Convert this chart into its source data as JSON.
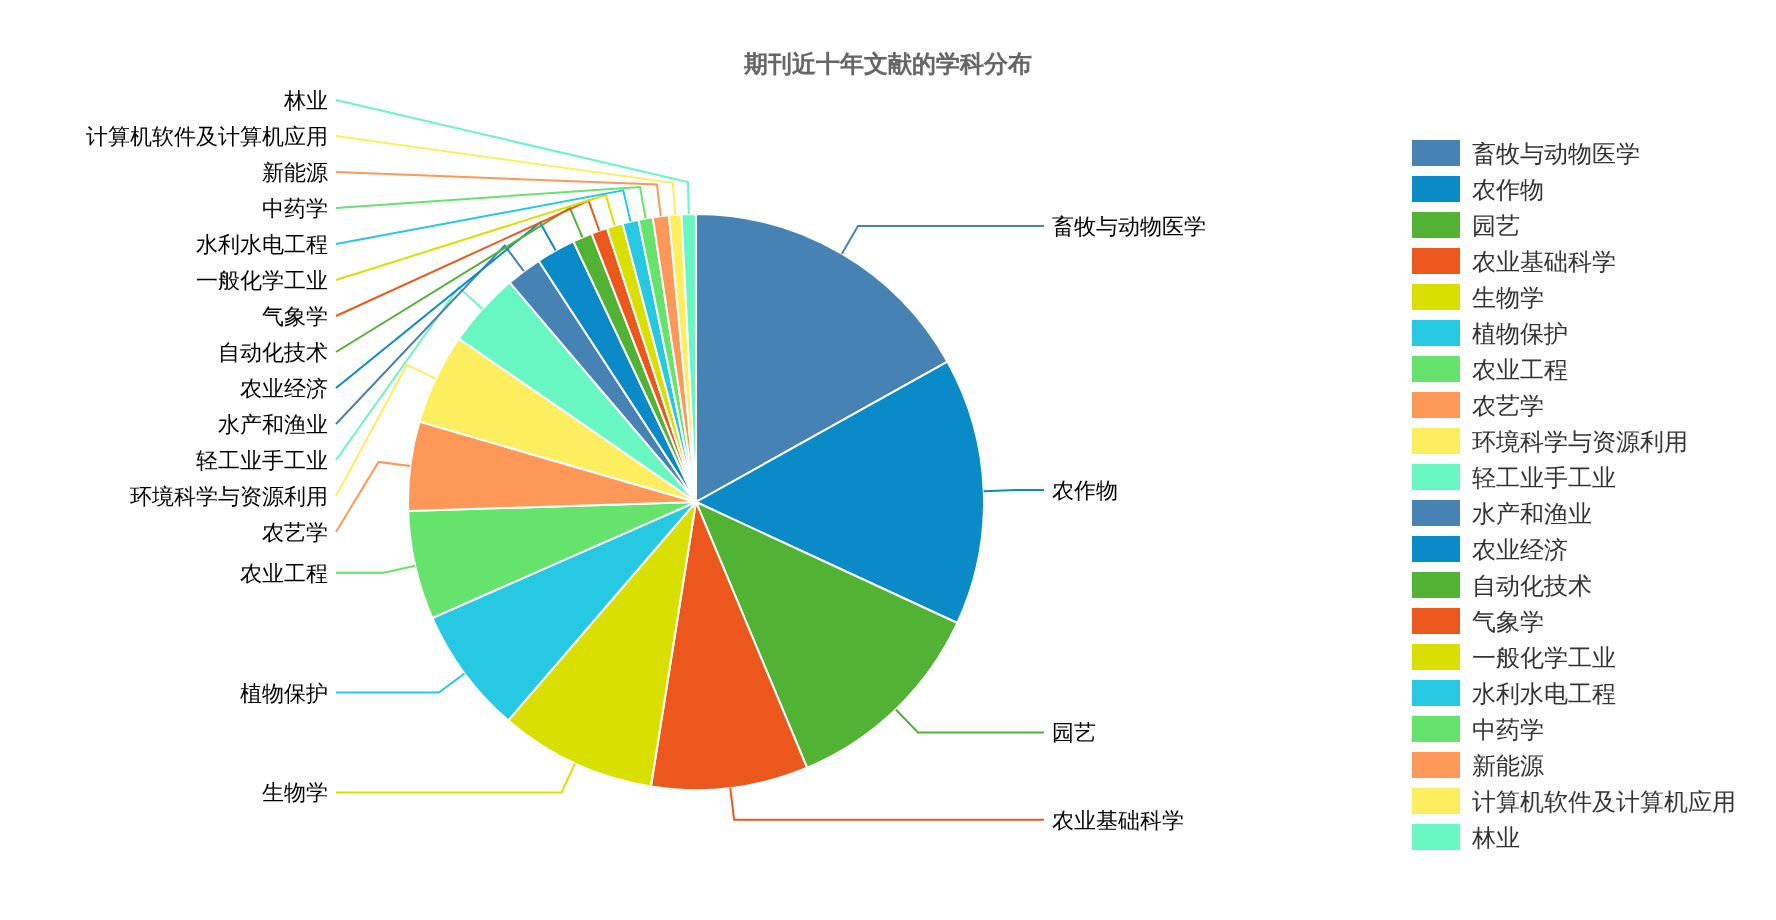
{
  "chart_data": {
    "type": "pie",
    "title": "期刊近十年文献的学科分布",
    "categories": [
      "畜牧与动物医学",
      "农作物",
      "园艺",
      "农业基础科学",
      "生物学",
      "植物保护",
      "农业工程",
      "农艺学",
      "环境科学与资源利用",
      "轻工业手工业",
      "水产和渔业",
      "农业经济",
      "自动化技术",
      "气象学",
      "一般化学工业",
      "水利水电工程",
      "中药学",
      "新能源",
      "计算机软件及计算机应用",
      "林业"
    ],
    "values": [
      16.9,
      15.0,
      11.8,
      8.8,
      8.8,
      7.1,
      6.1,
      5.0,
      5.1,
      4.2,
      2.0,
      2.2,
      1.1,
      0.9,
      0.9,
      0.9,
      0.8,
      0.9,
      0.7,
      0.8
    ],
    "colors": [
      "#4682b4",
      "#0a8ac6",
      "#52b233",
      "#ec571d",
      "#d9df00",
      "#26c8e2",
      "#66e36d",
      "#fe9858",
      "#fdee5f",
      "#68f6c2",
      "#4682b4",
      "#0a8ac6",
      "#52b233",
      "#ec571d",
      "#d9df00",
      "#26c8e2",
      "#66e36d",
      "#fe9858",
      "#fdee5f",
      "#68f6c2"
    ],
    "legend": "right"
  }
}
